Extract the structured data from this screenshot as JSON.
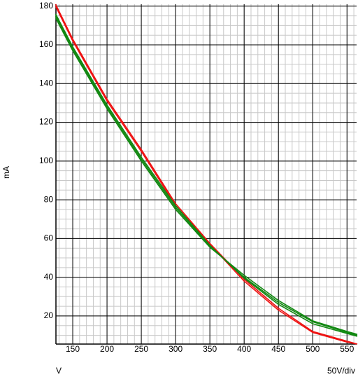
{
  "chart_data": {
    "type": "line",
    "y_label": "mA",
    "x_label": "V",
    "scale_label": "50V/div",
    "x": [
      125,
      150,
      200,
      250,
      300,
      350,
      400,
      450,
      500,
      550,
      565
    ],
    "series": [
      {
        "color": "#ee1111",
        "values": [
          181,
          163,
          132,
          106,
          78,
          57.5,
          39,
          24,
          12,
          7,
          5.5
        ]
      },
      {
        "color": "#ee1111",
        "values": [
          180,
          162,
          131,
          105,
          77,
          57,
          38,
          23,
          11.5,
          6.5,
          5.5
        ]
      },
      {
        "color": "#118811",
        "values": [
          175,
          158,
          128,
          101,
          76,
          56,
          40,
          27,
          17,
          11.5,
          10
        ]
      },
      {
        "color": "#118811",
        "values": [
          174,
          157,
          127,
          100,
          75,
          55.5,
          41,
          28,
          17.5,
          12,
          10.5
        ]
      },
      {
        "color": "#118811",
        "values": [
          176,
          159,
          129,
          102,
          77,
          56.5,
          39.5,
          26,
          16,
          11,
          9.5
        ]
      }
    ],
    "xlim": [
      125.5,
      564
    ],
    "ylim": [
      5.5,
      181
    ],
    "xticks": [
      150,
      200,
      250,
      300,
      350,
      400,
      450,
      500,
      550
    ],
    "yticks": [
      20,
      40,
      60,
      80,
      100,
      120,
      140,
      160,
      180
    ],
    "x_minor_step": 10,
    "y_minor_step": 5,
    "grid": true
  }
}
